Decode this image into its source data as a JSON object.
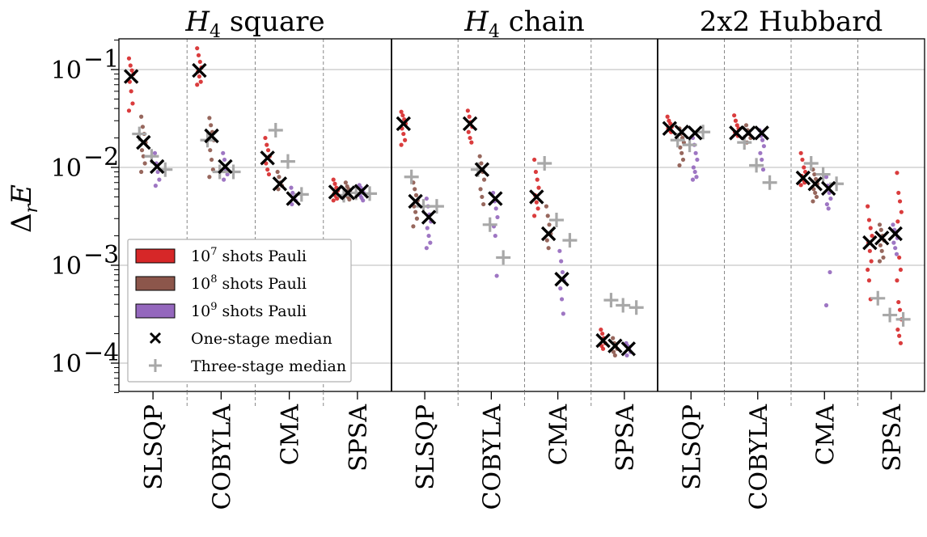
{
  "chart_data": {
    "type": "scatter",
    "y_scale": "log",
    "ylabel": "Δ_r E",
    "ylim": [
      5e-05,
      0.2
    ],
    "y_ticks": [
      {
        "value": 0.1,
        "label": "10",
        "exp": "−1"
      },
      {
        "value": 0.01,
        "label": "10",
        "exp": "−2"
      },
      {
        "value": 0.001,
        "label": "10",
        "exp": "−3"
      },
      {
        "value": 0.0001,
        "label": "10",
        "exp": "−4"
      }
    ],
    "grid": "horizontal",
    "panels": [
      {
        "title_math": "H",
        "title_sub": "4",
        "title_rest": " square",
        "optimizers": [
          {
            "name": "SLSQP",
            "points": {
              "1e7": [
                0.13,
                0.11,
                0.098,
                0.09,
                0.075,
                0.06,
                0.045,
                0.038
              ],
              "1e8": [
                0.033,
                0.026,
                0.022,
                0.018,
                0.015,
                0.013,
                0.011,
                0.009
              ],
              "1e9": [
                0.014,
                0.011,
                0.009,
                0.0075,
                0.0065
              ]
            },
            "one_stage": [
              0.085,
              0.018,
              0.0102
            ],
            "three_stage": [
              0.022,
              0.013,
              0.0095
            ]
          },
          {
            "name": "COBYLA",
            "points": {
              "1e7": [
                0.165,
                0.14,
                0.12,
                0.105,
                0.095,
                0.085,
                0.075,
                0.07
              ],
              "1e8": [
                0.032,
                0.027,
                0.023,
                0.019,
                0.015,
                0.012,
                0.0095,
                0.008
              ],
              "1e9": [
                0.014,
                0.012,
                0.0095,
                0.0085,
                0.0075
              ]
            },
            "one_stage": [
              0.098,
              0.021,
              0.0102
            ],
            "three_stage": [
              0.019,
              0.009,
              0.009
            ]
          },
          {
            "name": "CMA",
            "points": {
              "1e7": [
                0.02,
                0.017,
                0.015,
                0.013,
                0.011,
                0.0095,
                0.0085
              ],
              "1e8": [
                0.009,
                0.008,
                0.007,
                0.0065,
                0.006
              ],
              "1e9": [
                0.0062,
                0.0055,
                0.005,
                0.0046,
                0.0042
              ]
            },
            "one_stage": [
              0.0125,
              0.0068,
              0.0048
            ],
            "three_stage": [
              0.024,
              0.0115,
              0.0053
            ]
          },
          {
            "name": "SPSA",
            "points": {
              "1e7": [
                0.0075,
                0.0068,
                0.0062,
                0.0058,
                0.0054,
                0.0051,
                0.0048,
                0.0046
              ],
              "1e8": [
                0.007,
                0.0064,
                0.006,
                0.0056,
                0.0053,
                0.005,
                0.0047
              ],
              "1e9": [
                0.0066,
                0.0062,
                0.0058,
                0.0055,
                0.0052,
                0.0049,
                0.0046
              ]
            },
            "one_stage": [
              0.0056,
              0.0055,
              0.0057
            ],
            "three_stage": [
              0.0052,
              0.0055,
              0.0054
            ]
          }
        ]
      },
      {
        "title_math": "H",
        "title_sub": "4",
        "title_rest": " chain",
        "optimizers": [
          {
            "name": "SLSQP",
            "points": {
              "1e7": [
                0.037,
                0.034,
                0.031,
                0.028,
                0.025,
                0.022,
                0.019,
                0.017
              ],
              "1e8": [
                0.007,
                0.006,
                0.0052,
                0.0046,
                0.004,
                0.0035,
                0.003,
                0.0025
              ],
              "1e9": [
                0.0048,
                0.004,
                0.0033,
                0.0028,
                0.0024,
                0.002,
                0.0017,
                0.0015
              ]
            },
            "one_stage": [
              0.028,
              0.0045,
              0.0031
            ],
            "three_stage": [
              0.008,
              0.004,
              0.004
            ]
          },
          {
            "name": "COBYLA",
            "points": {
              "1e7": [
                0.038,
                0.033,
                0.029,
                0.026,
                0.023,
                0.02,
                0.018
              ],
              "1e8": [
                0.013,
                0.011,
                0.009,
                0.0075,
                0.006,
                0.005,
                0.0042
              ],
              "1e9": [
                0.0055,
                0.0045,
                0.0038,
                0.0031,
                0.0025,
                0.002,
                0.00078
              ]
            },
            "one_stage": [
              0.028,
              0.0095,
              0.0048
            ],
            "three_stage": [
              0.0095,
              0.0026,
              0.0012
            ]
          },
          {
            "name": "CMA",
            "points": {
              "1e7": [
                0.012,
                0.009,
                0.0075,
                0.0062,
                0.0052,
                0.0044,
                0.0038,
                0.0032
              ],
              "1e8": [
                0.004,
                0.0032,
                0.0026,
                0.0021,
                0.0018,
                0.0015
              ],
              "1e9": [
                0.0014,
                0.0011,
                0.00085,
                0.0007,
                0.00058,
                0.00045,
                0.00032
              ]
            },
            "one_stage": [
              0.005,
              0.0021,
              0.00072
            ],
            "three_stage": [
              0.011,
              0.0029,
              0.0018
            ]
          },
          {
            "name": "SPSA",
            "points": {
              "1e7": [
                0.00022,
                0.0002,
                0.00018,
                0.00016,
                0.00015,
                0.00014
              ],
              "1e8": [
                0.00018,
                0.00016,
                0.00015,
                0.00014,
                0.00013,
                0.00012
              ],
              "1e9": [
                0.00016,
                0.00015,
                0.00014,
                0.00013,
                0.00012
              ]
            },
            "one_stage": [
              0.00017,
              0.00015,
              0.00014
            ],
            "three_stage": [
              0.00044,
              0.00039,
              0.00037
            ]
          }
        ]
      },
      {
        "title_math": "",
        "title_sub": "",
        "title_rest": "2x2 Hubbard",
        "optimizers": [
          {
            "name": "SLSQP",
            "points": {
              "1e7": [
                0.033,
                0.03,
                0.028,
                0.026,
                0.025,
                0.024,
                0.023
              ],
              "1e8": [
                0.025,
                0.022,
                0.02,
                0.018,
                0.016,
                0.014,
                0.012,
                0.0105
              ],
              "1e9": [
                0.02,
                0.017,
                0.014,
                0.012,
                0.01,
                0.009,
                0.008,
                0.0075
              ]
            },
            "one_stage": [
              0.025,
              0.023,
              0.0225
            ],
            "three_stage": [
              0.019,
              0.017,
              0.023
            ]
          },
          {
            "name": "COBYLA",
            "points": {
              "1e7": [
                0.034,
                0.03,
                0.027,
                0.025,
                0.023,
                0.022,
                0.021
              ],
              "1e8": [
                0.027,
                0.024,
                0.022,
                0.02,
                0.018
              ],
              "1e9": [
                0.024,
                0.021,
                0.019,
                0.0165,
                0.014,
                0.012,
                0.0095
              ]
            },
            "one_stage": [
              0.0225,
              0.0225,
              0.0225
            ],
            "three_stage": [
              0.018,
              0.0105,
              0.007
            ]
          },
          {
            "name": "CMA",
            "points": {
              "1e7": [
                0.014,
                0.012,
                0.01,
                0.009,
                0.0082,
                0.0075,
                0.007,
                0.0066
              ],
              "1e8": [
                0.0095,
                0.0085,
                0.0076,
                0.0068,
                0.006,
                0.0055,
                0.005,
                0.0045
              ],
              "1e9": [
                0.008,
                0.0065,
                0.0055,
                0.0048,
                0.0042,
                0.0038,
                0.00085,
                0.00039
              ]
            },
            "one_stage": [
              0.0078,
              0.0068,
              0.0061
            ],
            "three_stage": [
              0.011,
              0.0085,
              0.0068
            ]
          },
          {
            "name": "SPSA",
            "points": {
              "1e7": [
                0.004,
                0.0029,
                0.0024,
                0.002,
                0.0017,
                0.0014,
                0.0011,
                0.0009,
                0.0007,
                0.00045
              ],
              "1e8": [
                0.0026,
                0.0023,
                0.002,
                0.0018,
                0.0016,
                0.0014,
                0.0012,
                0.0011
              ],
              "1e9": [
                0.0026,
                0.0023,
                0.0021,
                0.0019,
                0.0017,
                0.0015,
                0.0013
              ]
            },
            "one_stage": [
              0.0017,
              0.0019,
              0.0021
            ],
            "three_stage": [
              0.00046,
              0.00031,
              0.00028
            ]
          }
        ]
      }
    ],
    "extra_points": [
      {
        "panel": 2,
        "optimizer": 3,
        "shot": "1e7",
        "values": [
          0.0088,
          0.0055,
          0.0045,
          0.0035,
          0.0028,
          0.0012,
          0.0009,
          0.0007,
          0.00042,
          0.00035,
          0.00028,
          0.00022,
          0.00019,
          0.00016
        ]
      }
    ],
    "legend": {
      "position": "lower-left",
      "entries": [
        {
          "kind": "patch",
          "color": "#d62728",
          "label_base": "10",
          "label_exp": "7",
          "label_rest": " shots Pauli"
        },
        {
          "kind": "patch",
          "color": "#8c564b",
          "label_base": "10",
          "label_exp": "8",
          "label_rest": " shots Pauli"
        },
        {
          "kind": "patch",
          "color": "#9467bd",
          "label_base": "10",
          "label_exp": "9",
          "label_rest": " shots Pauli"
        },
        {
          "kind": "x-marker",
          "color": "#000000",
          "label_base": "One-stage median",
          "label_exp": "",
          "label_rest": ""
        },
        {
          "kind": "plus-marker",
          "color": "#a8a8a8",
          "label_base": "Three-stage median",
          "label_exp": "",
          "label_rest": ""
        }
      ]
    },
    "colors": {
      "1e7": "#d62728",
      "1e8": "#8c564b",
      "1e9": "#9467bd",
      "one_stage": "#000000",
      "three_stage": "#a8a8a8"
    }
  }
}
